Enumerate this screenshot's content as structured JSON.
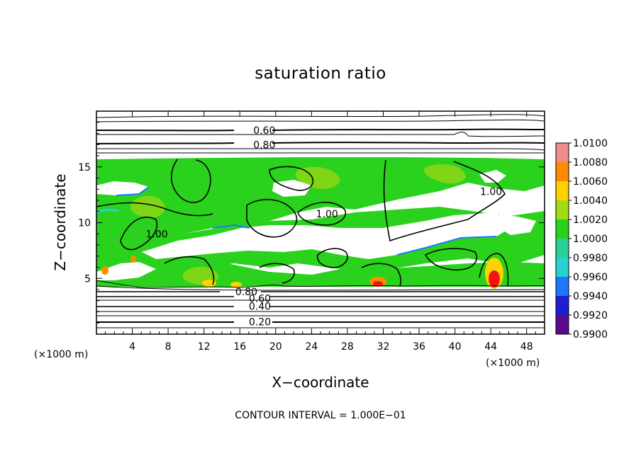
{
  "chart_data": {
    "type": "heatmap",
    "title": "saturation ratio",
    "xlabel": "X−coordinate",
    "ylabel": "Z−coordinate",
    "x_unit": "(×1000 m)",
    "z_unit": "(×1000 m)",
    "xlim": [
      0,
      50
    ],
    "ylim": [
      0,
      20
    ],
    "x_ticks": [
      4,
      8,
      12,
      16,
      20,
      24,
      28,
      32,
      36,
      40,
      44,
      48
    ],
    "x_tick_labels": [
      "4",
      "8",
      "12",
      "16",
      "20",
      "24",
      "28",
      "32",
      "36",
      "40",
      "44",
      "48"
    ],
    "y_ticks": [
      5,
      10,
      15
    ],
    "y_tick_labels": [
      "5",
      "10",
      "15"
    ],
    "colorbar": {
      "levels": [
        0.99,
        0.992,
        0.994,
        0.996,
        0.998,
        1.0,
        1.002,
        1.004,
        1.006,
        1.008,
        1.01
      ],
      "labels": [
        "0.9900",
        "0.9920",
        "0.9940",
        "0.9960",
        "0.9980",
        "1.0000",
        "1.0020",
        "1.0040",
        "1.0060",
        "1.0080",
        "1.0100"
      ],
      "colors": [
        "#5a0a8c",
        "#1e1ed2",
        "#1e78ff",
        "#28d2d2",
        "#28d296",
        "#2ad21e",
        "#a0dc14",
        "#ffd200",
        "#ff8c00",
        "#f01414",
        "#f08c8c"
      ]
    },
    "contour_labels": [
      {
        "text": "0.60",
        "x": 17.5,
        "y": 18.3
      },
      {
        "text": "0.80",
        "x": 17.5,
        "y": 17.0
      },
      {
        "text": "1.00",
        "x": 42.8,
        "y": 12.8
      },
      {
        "text": "1.00",
        "x": 24.5,
        "y": 10.8
      },
      {
        "text": "1.00",
        "x": 5.5,
        "y": 9.0
      },
      {
        "text": "0.80",
        "x": 15.5,
        "y": 3.8
      },
      {
        "text": "0.60",
        "x": 17.0,
        "y": 3.2
      },
      {
        "text": "0.40",
        "x": 17.0,
        "y": 2.5
      },
      {
        "text": "0.20",
        "x": 17.0,
        "y": 1.1
      }
    ],
    "contour_interval_label": "CONTOUR INTERVAL = 1.000E−01"
  }
}
